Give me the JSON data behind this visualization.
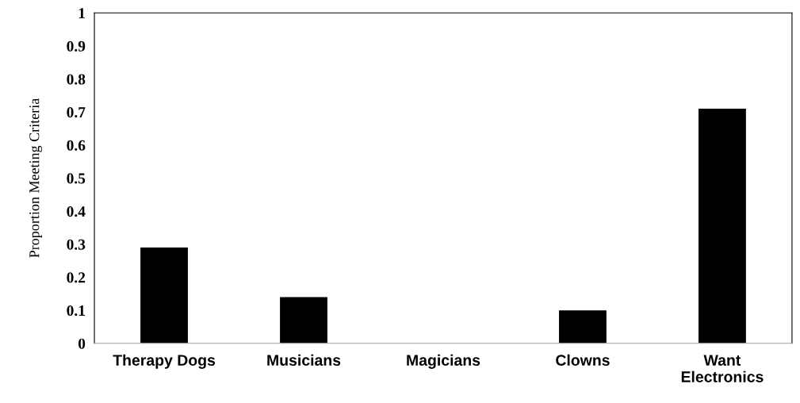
{
  "chart_data": {
    "type": "bar",
    "ylabel": "Proportion Meeting Criteria",
    "categories": [
      "Therapy Dogs",
      "Musicians",
      "Magicians",
      "Clowns",
      "Want\nElectronics"
    ],
    "values": [
      0.29,
      0.14,
      0,
      0.1,
      0.71
    ],
    "color": "#000000",
    "ylim": [
      0,
      1
    ],
    "yticks": [
      0,
      0.1,
      0.2,
      0.3,
      0.4,
      0.5,
      0.6,
      0.7,
      0.8,
      0.9,
      1
    ],
    "grid": false,
    "legend": false
  }
}
